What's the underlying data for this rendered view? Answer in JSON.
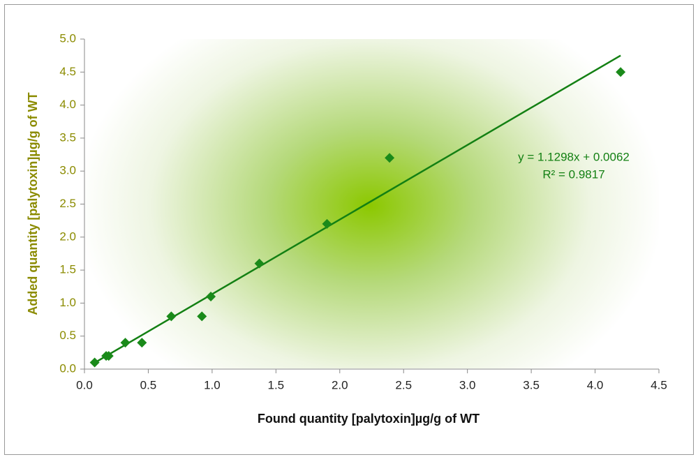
{
  "chart_data": {
    "type": "scatter",
    "x_label": "Found quantity [palytoxin]µg/g of WT",
    "y_label": "Added quantity [palytoxin]µg/g of WT",
    "color": "#1a8a1a",
    "x": [
      0.08,
      0.17,
      0.19,
      0.32,
      0.45,
      0.68,
      0.92,
      0.99,
      1.37,
      1.9,
      2.39,
      4.2
    ],
    "values": [
      0.1,
      0.2,
      0.2,
      0.4,
      0.4,
      0.8,
      0.8,
      1.1,
      1.6,
      2.2,
      3.2,
      4.5
    ],
    "xlim": [
      0,
      4.5
    ],
    "ylim": [
      0,
      5
    ],
    "xticks": [
      {
        "value": 0,
        "label": "0.0"
      },
      {
        "value": 0.5,
        "label": "0.5"
      },
      {
        "value": 1,
        "label": "1.0"
      },
      {
        "value": 1.5,
        "label": "1.5"
      },
      {
        "value": 2,
        "label": "2.0"
      },
      {
        "value": 2.5,
        "label": "2.5"
      },
      {
        "value": 3,
        "label": "3.0"
      },
      {
        "value": 3.5,
        "label": "3.5"
      },
      {
        "value": 4,
        "label": "4.0"
      },
      {
        "value": 4.5,
        "label": "4.5"
      }
    ],
    "yticks": [
      {
        "value": 0,
        "label": "0.0"
      },
      {
        "value": 0.5,
        "label": "0.5"
      },
      {
        "value": 1,
        "label": "1.0"
      },
      {
        "value": 1.5,
        "label": "1.5"
      },
      {
        "value": 2,
        "label": "2.0"
      },
      {
        "value": 2.5,
        "label": "2.5"
      },
      {
        "value": 3,
        "label": "3.0"
      },
      {
        "value": 3.5,
        "label": "3.5"
      },
      {
        "value": 4,
        "label": "4.0"
      },
      {
        "value": 4.5,
        "label": "4.5"
      },
      {
        "value": 5,
        "label": "5.0"
      }
    ],
    "grid": false,
    "trendline": {
      "slope": 1.1298,
      "intercept": 0.0062,
      "color": "#138013",
      "equation": "y = 1.1298x + 0.0062",
      "r_squared": 0.9817,
      "r_squared_label": "R² = 0.9817"
    }
  }
}
